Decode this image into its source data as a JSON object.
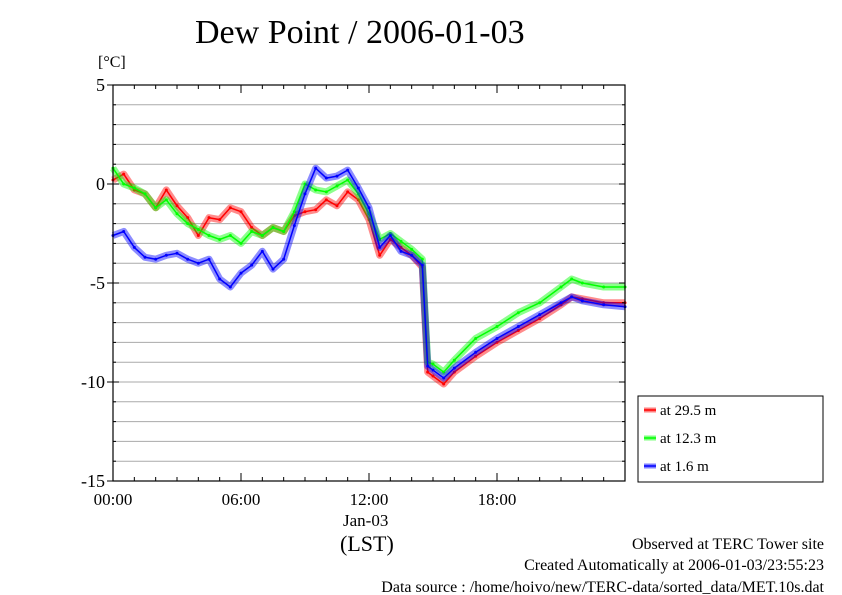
{
  "chart_data": {
    "type": "line",
    "title": "Dew Point / 2006-01-03",
    "ylabel": "[°C]",
    "xlabel": "(LST)",
    "date_label": "Jan-03",
    "ylim": [
      -15,
      5
    ],
    "xlim": [
      0,
      24
    ],
    "yticks": [
      5,
      0,
      -5,
      -10,
      -15
    ],
    "ytick_labels": [
      "5",
      "0",
      "-5",
      "-10",
      "-15"
    ],
    "xticks": [
      0,
      6,
      12,
      18
    ],
    "xtick_labels": [
      "00:00",
      "06:00",
      "12:00",
      "18:00"
    ],
    "grid": true,
    "legend_position": "bottom-right-outside",
    "x": [
      0,
      0.5,
      1,
      1.5,
      2,
      2.5,
      3,
      3.5,
      4,
      4.5,
      5,
      5.5,
      6,
      6.5,
      7,
      7.5,
      8,
      8.5,
      9,
      9.5,
      10,
      10.5,
      11,
      11.5,
      12,
      12.5,
      13,
      13.5,
      14,
      14.5,
      14.75,
      15,
      15.5,
      16,
      17,
      18,
      19,
      20,
      21,
      21.5,
      22,
      23,
      24
    ],
    "series": [
      {
        "name": "at 29.5 m",
        "color": "#ff0000",
        "values": [
          0.2,
          0.5,
          -0.3,
          -0.5,
          -1.2,
          -0.3,
          -1.1,
          -1.7,
          -2.6,
          -1.7,
          -1.8,
          -1.2,
          -1.4,
          -2.2,
          -2.6,
          -2.2,
          -2.4,
          -1.6,
          -1.4,
          -1.3,
          -0.8,
          -1.1,
          -0.4,
          -0.8,
          -1.8,
          -3.6,
          -2.8,
          -3.2,
          -3.6,
          -4.2,
          -9.5,
          -9.7,
          -10.1,
          -9.5,
          -8.7,
          -8.0,
          -7.4,
          -6.8,
          -6.1,
          -5.7,
          -5.8,
          -6.0,
          -6.0
        ]
      },
      {
        "name": "at 12.3 m",
        "color": "#00ff00",
        "values": [
          0.8,
          0.0,
          -0.2,
          -0.5,
          -1.2,
          -0.8,
          -1.5,
          -2.0,
          -2.3,
          -2.6,
          -2.8,
          -2.6,
          -3.0,
          -2.4,
          -2.6,
          -2.2,
          -2.4,
          -1.4,
          0.0,
          -0.3,
          -0.4,
          -0.1,
          0.2,
          -0.5,
          -1.5,
          -2.8,
          -2.5,
          -2.9,
          -3.3,
          -3.8,
          -9.0,
          -9.1,
          -9.5,
          -8.9,
          -7.8,
          -7.2,
          -6.5,
          -6.0,
          -5.2,
          -4.8,
          -5.0,
          -5.2,
          -5.2
        ]
      },
      {
        "name": "at 1.6 m",
        "color": "#0000ff",
        "values": [
          -2.6,
          -2.4,
          -3.2,
          -3.7,
          -3.8,
          -3.6,
          -3.5,
          -3.8,
          -4.0,
          -3.8,
          -4.8,
          -5.2,
          -4.5,
          -4.1,
          -3.4,
          -4.3,
          -3.8,
          -2.1,
          -0.5,
          0.8,
          0.3,
          0.4,
          0.7,
          -0.2,
          -1.2,
          -3.2,
          -2.6,
          -3.4,
          -3.6,
          -4.1,
          -9.2,
          -9.4,
          -9.8,
          -9.3,
          -8.5,
          -7.8,
          -7.2,
          -6.6,
          -6.0,
          -5.7,
          -5.9,
          -6.1,
          -6.2
        ]
      }
    ]
  },
  "footer": {
    "observed": "Observed at TERC Tower site",
    "created": "Created Automatically at 2006-01-03/23:55:23",
    "source": "Data source : /home/hoivo/new/TERC-data/sorted_data/MET.10s.dat"
  }
}
